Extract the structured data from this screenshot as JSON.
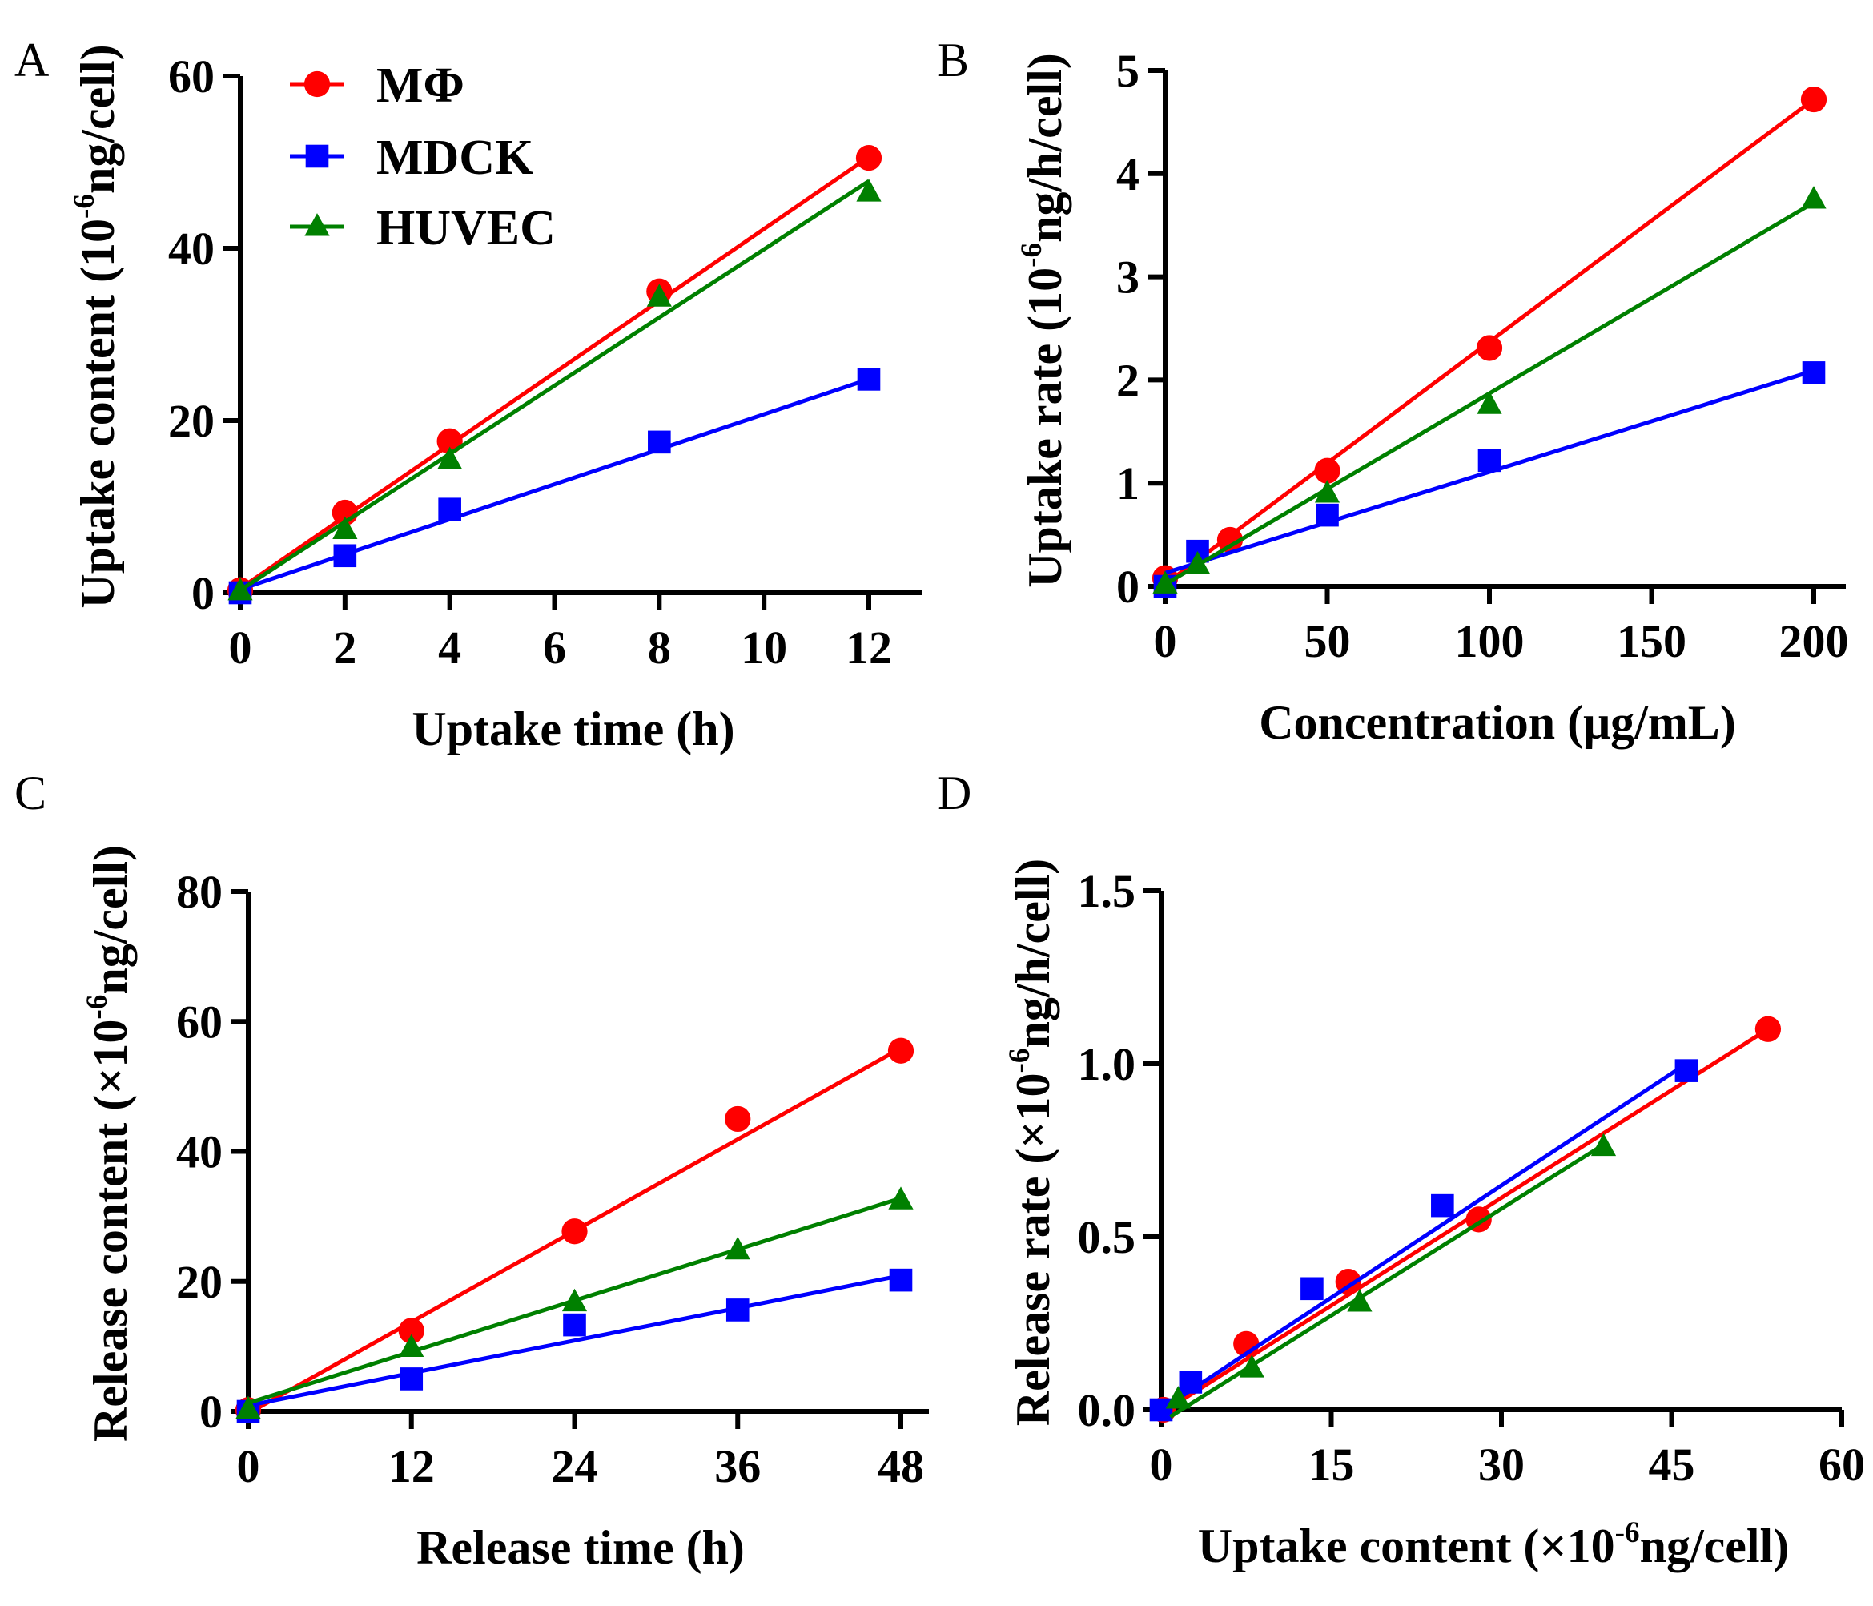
{
  "colors": {
    "MΦ": "#ff0000",
    "MDCK": "#0000ff",
    "HUVEC": "#008000",
    "axis": "#000000"
  },
  "legend": [
    {
      "name": "MΦ",
      "marker": "circle"
    },
    {
      "name": "MDCK",
      "marker": "square"
    },
    {
      "name": "HUVEC",
      "marker": "triangle"
    }
  ],
  "chart_data": [
    {
      "panel": "A",
      "type": "scatter",
      "xlabel": "Uptake time (h)",
      "ylabel": {
        "pre": "Uptake content (10",
        "sup": "-6",
        "post": "ng/cell)"
      },
      "xlim": [
        0,
        13
      ],
      "ylim": [
        0,
        60
      ],
      "xticks": [
        0,
        2,
        4,
        6,
        8,
        10,
        12
      ],
      "yticks": [
        0,
        20,
        40,
        60
      ],
      "series": [
        {
          "name": "MΦ",
          "marker": "circle",
          "x": [
            0,
            2,
            4,
            8,
            12
          ],
          "y": [
            0.3,
            9.3,
            17.6,
            35.0,
            50.5
          ],
          "fit": [
            [
              0,
              0.5
            ],
            [
              12,
              50.6
            ]
          ]
        },
        {
          "name": "MDCK",
          "marker": "square",
          "x": [
            0,
            2,
            4,
            8,
            12
          ],
          "y": [
            0.0,
            4.3,
            9.7,
            17.5,
            24.8
          ],
          "fit": [
            [
              0,
              0.4
            ],
            [
              12,
              24.8
            ]
          ]
        },
        {
          "name": "HUVEC",
          "marker": "triangle",
          "x": [
            0,
            2,
            4,
            8,
            12
          ],
          "y": [
            0.2,
            7.3,
            15.4,
            34.3,
            46.5
          ],
          "fit": [
            [
              0,
              0.3
            ],
            [
              12,
              47.8
            ]
          ]
        }
      ]
    },
    {
      "panel": "B",
      "type": "scatter",
      "xlabel": "Concentration (μg/mL)",
      "ylabel": {
        "pre": "Uptake rate (10",
        "sup": "-6",
        "post": "ng/h/cell)"
      },
      "xlim": [
        0,
        210
      ],
      "ylim": [
        0,
        5
      ],
      "xticks": [
        0,
        50,
        100,
        150,
        200
      ],
      "yticks": [
        0,
        1,
        2,
        3,
        4,
        5
      ],
      "series": [
        {
          "name": "MΦ",
          "marker": "circle",
          "x": [
            0,
            20,
            50,
            100,
            200
          ],
          "y": [
            0.08,
            0.45,
            1.12,
            2.31,
            4.72
          ],
          "fit": [
            [
              0,
              0.02
            ],
            [
              200,
              4.72
            ]
          ]
        },
        {
          "name": "MDCK",
          "marker": "square",
          "x": [
            0,
            10,
            50,
            100,
            200
          ],
          "y": [
            0.0,
            0.34,
            0.69,
            1.22,
            2.07
          ],
          "fit": [
            [
              0,
              0.13
            ],
            [
              200,
              2.09
            ]
          ]
        },
        {
          "name": "HUVEC",
          "marker": "triangle",
          "x": [
            0,
            10,
            50,
            100,
            200
          ],
          "y": [
            0.02,
            0.21,
            0.9,
            1.76,
            3.75
          ],
          "fit": [
            [
              0,
              0.02
            ],
            [
              200,
              3.72
            ]
          ]
        }
      ]
    },
    {
      "panel": "C",
      "type": "scatter",
      "xlabel": "Release time (h)",
      "ylabel": {
        "pre": "Release content (×10",
        "sup": "-6",
        "post": "ng/cell)"
      },
      "xlim": [
        0,
        50
      ],
      "ylim": [
        0,
        80
      ],
      "xticks": [
        0,
        12,
        24,
        36,
        48
      ],
      "yticks": [
        0,
        20,
        40,
        60,
        80
      ],
      "series": [
        {
          "name": "MΦ",
          "marker": "circle",
          "x": [
            0,
            12,
            24,
            36,
            48
          ],
          "y": [
            0.2,
            12.4,
            27.7,
            45.0,
            55.5
          ],
          "fit": [
            [
              0,
              -0.3
            ],
            [
              48,
              55.9
            ]
          ]
        },
        {
          "name": "MDCK",
          "marker": "square",
          "x": [
            0,
            12,
            24,
            36,
            48
          ],
          "y": [
            0.0,
            5.0,
            13.3,
            15.6,
            20.2
          ],
          "fit": [
            [
              0,
              0.9
            ],
            [
              48,
              20.9
            ]
          ]
        },
        {
          "name": "HUVEC",
          "marker": "triangle",
          "x": [
            0,
            12,
            24,
            36,
            48
          ],
          "y": [
            0.3,
            9.8,
            16.8,
            24.8,
            32.5
          ],
          "fit": [
            [
              0,
              1.3
            ],
            [
              48,
              32.8
            ]
          ]
        }
      ]
    },
    {
      "panel": "D",
      "type": "scatter",
      "xlabel": {
        "pre": "Uptake content (×10",
        "sup": "-6",
        "post": "ng/cell)"
      },
      "ylabel": {
        "pre": "Release rate (×10",
        "sup": "-6",
        "post": "ng/h/cell)"
      },
      "xlim": [
        0,
        60
      ],
      "ylim": [
        0,
        1.5
      ],
      "xticks": [
        0,
        15,
        30,
        45,
        60
      ],
      "ytick_labels": [
        "0.0",
        "0.5",
        "1.0",
        "1.5"
      ],
      "yticks": [
        0,
        0.5,
        1.0,
        1.5
      ],
      "series": [
        {
          "name": "MΦ",
          "marker": "circle",
          "x": [
            0.2,
            7.5,
            16.5,
            28.0,
            53.5
          ],
          "y": [
            0.0,
            0.19,
            0.37,
            0.55,
            1.1
          ],
          "fit": [
            [
              0,
              -0.01
            ],
            [
              53.5,
              1.1
            ]
          ]
        },
        {
          "name": "MDCK",
          "marker": "square",
          "x": [
            0.0,
            2.6,
            13.3,
            24.8,
            46.3
          ],
          "y": [
            0.0,
            0.08,
            0.35,
            0.59,
            0.98
          ],
          "fit": [
            [
              0,
              0.0
            ],
            [
              46.3,
              1.0
            ]
          ]
        },
        {
          "name": "HUVEC",
          "marker": "triangle",
          "x": [
            1.5,
            8.0,
            17.5,
            39.0
          ],
          "y": [
            0.03,
            0.12,
            0.31,
            0.76
          ],
          "fit": [
            [
              0.8,
              -0.02
            ],
            [
              38.7,
              0.76
            ]
          ]
        }
      ]
    }
  ]
}
